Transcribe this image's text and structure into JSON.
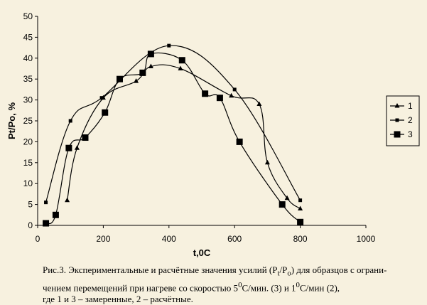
{
  "chart_data": {
    "type": "line",
    "xlabel": "t,0C",
    "ylabel": "Pt/Po, %",
    "xlim": [
      0,
      1000
    ],
    "ylim": [
      0,
      50
    ],
    "xticks": [
      0,
      200,
      400,
      600,
      800,
      1000
    ],
    "yticks": [
      0,
      5,
      10,
      15,
      20,
      25,
      30,
      35,
      40,
      45,
      50
    ],
    "grid": false,
    "legend_position": "right",
    "series": [
      {
        "name": "1",
        "marker": "triangle",
        "x": [
          90,
          120,
          200,
          300,
          345,
          435,
          590,
          675,
          700,
          760,
          800
        ],
        "y": [
          6,
          18.5,
          30.5,
          34.5,
          38,
          37.5,
          31,
          29,
          15,
          6.5,
          4
        ]
      },
      {
        "name": "2",
        "marker": "small-square",
        "x": [
          25,
          100,
          195,
          400,
          600,
          800
        ],
        "y": [
          5.5,
          25,
          30.5,
          43,
          32.5,
          6
        ]
      },
      {
        "name": "3",
        "marker": "large-square",
        "x": [
          25,
          55,
          95,
          145,
          205,
          250,
          320,
          345,
          440,
          510,
          555,
          615,
          745,
          800
        ],
        "y": [
          0.5,
          2.5,
          18.5,
          21,
          27,
          35,
          36.5,
          41,
          39.5,
          31.5,
          30.5,
          20,
          5,
          0.8
        ]
      }
    ]
  },
  "caption": {
    "line1_a": "Рис.3. Экспериментальные и расчётные значения усилий (P",
    "sub_t": "t",
    "line1_b": "/P",
    "sub_o": "o",
    "line1_c": ") для образцов с ограни-",
    "line2_a": "чением перемещений при нагреве со скоростью 5",
    "sup_a": "0",
    "line2_b": "С/мин. (3) и 1",
    "sup_b": "0",
    "line2_c": "С/мин (2),",
    "line3": "где 1 и 3 – замеренные, 2 – расчётные."
  },
  "colors": {
    "background": "#f7f1df",
    "series": "#000000"
  }
}
